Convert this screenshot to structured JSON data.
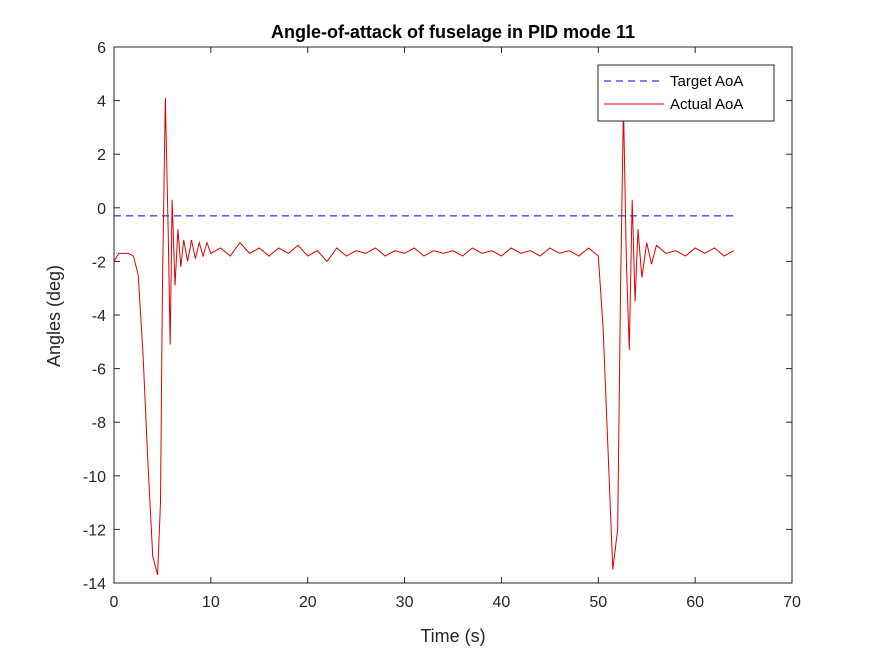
{
  "chart_data": {
    "type": "line",
    "title": "Angle-of-attack of fuselage in PID mode 11",
    "xlabel": "Time (s)",
    "ylabel": "Angles (deg)",
    "xlim": [
      0,
      70
    ],
    "ylim": [
      -14,
      6
    ],
    "xticks": [
      0,
      10,
      20,
      30,
      40,
      50,
      60,
      70
    ],
    "yticks": [
      -14,
      -12,
      -10,
      -8,
      -6,
      -4,
      -2,
      0,
      2,
      4,
      6
    ],
    "grid": false,
    "legend_position": "top-right",
    "series": [
      {
        "name": "Target AoA",
        "style": "dashed",
        "color": "#0000ff",
        "x": [
          0,
          64
        ],
        "y": [
          -0.3,
          -0.3
        ]
      },
      {
        "name": "Actual AoA",
        "style": "solid",
        "color": "#e00000",
        "x": [
          0,
          0.5,
          1.0,
          1.5,
          2.0,
          2.5,
          3.0,
          3.5,
          4.0,
          4.5,
          4.8,
          5.0,
          5.3,
          5.6,
          5.8,
          6.0,
          6.3,
          6.6,
          6.9,
          7.2,
          7.6,
          8.0,
          8.4,
          8.8,
          9.2,
          9.6,
          10,
          11,
          12,
          13,
          14,
          15,
          16,
          17,
          18,
          19,
          20,
          21,
          22,
          23,
          24,
          25,
          26,
          27,
          28,
          29,
          30,
          31,
          32,
          33,
          34,
          35,
          36,
          37,
          38,
          39,
          40,
          41,
          42,
          43,
          44,
          45,
          46,
          47,
          48,
          49,
          50,
          50.5,
          51,
          51.5,
          52,
          52.3,
          52.6,
          52.9,
          53.2,
          53.5,
          53.8,
          54.1,
          54.5,
          55,
          55.5,
          56,
          57,
          58,
          59,
          60,
          61,
          62,
          63,
          64
        ],
        "y": [
          -2.0,
          -1.7,
          -1.7,
          -1.7,
          -1.8,
          -2.5,
          -5.5,
          -9.5,
          -13.0,
          -13.7,
          -11.0,
          -3.0,
          4.1,
          -1.0,
          -5.1,
          0.3,
          -2.9,
          -0.8,
          -2.2,
          -1.2,
          -2.0,
          -1.2,
          -1.9,
          -1.3,
          -1.8,
          -1.3,
          -1.7,
          -1.5,
          -1.8,
          -1.3,
          -1.7,
          -1.5,
          -1.8,
          -1.5,
          -1.7,
          -1.4,
          -1.8,
          -1.6,
          -2.0,
          -1.5,
          -1.8,
          -1.6,
          -1.7,
          -1.5,
          -1.8,
          -1.6,
          -1.7,
          -1.5,
          -1.8,
          -1.6,
          -1.7,
          -1.6,
          -1.8,
          -1.5,
          -1.7,
          -1.6,
          -1.8,
          -1.5,
          -1.7,
          -1.6,
          -1.8,
          -1.5,
          -1.7,
          -1.6,
          -1.8,
          -1.5,
          -1.8,
          -4.5,
          -9.0,
          -13.5,
          -12.0,
          -3.0,
          3.8,
          -2.0,
          -5.3,
          0.3,
          -3.5,
          -0.8,
          -2.6,
          -1.3,
          -2.1,
          -1.4,
          -1.7,
          -1.6,
          -1.8,
          -1.5,
          -1.7,
          -1.5,
          -1.8,
          -1.6
        ]
      }
    ]
  }
}
